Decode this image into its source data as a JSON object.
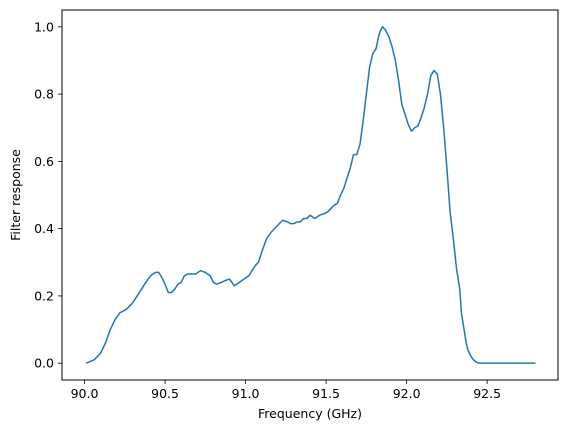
{
  "chart_data": {
    "type": "line",
    "title": "",
    "xlabel": "Frequency (GHz)",
    "ylabel": "Filter response",
    "xlim": [
      89.86,
      92.94
    ],
    "ylim": [
      -0.05,
      1.05
    ],
    "xticks": [
      90.0,
      90.5,
      91.0,
      91.5,
      92.0,
      92.5
    ],
    "xtick_labels": [
      "90.0",
      "90.5",
      "91.0",
      "91.5",
      "92.0",
      "92.5"
    ],
    "yticks": [
      0.0,
      0.2,
      0.4,
      0.6,
      0.8,
      1.0
    ],
    "ytick_labels": [
      "0.0",
      "0.2",
      "0.4",
      "0.6",
      "0.8",
      "1.0"
    ],
    "grid": false,
    "color": "#1f77b4",
    "series": [
      {
        "x": [
          90.01,
          90.06,
          90.1,
          90.13,
          90.16,
          90.19,
          90.22,
          90.24,
          90.26,
          90.3,
          90.34,
          90.38,
          90.41,
          90.44,
          90.46,
          90.48,
          90.5,
          90.52,
          90.54,
          90.56,
          90.58,
          90.6,
          90.62,
          90.64,
          90.66,
          90.69,
          90.72,
          90.75,
          90.78,
          90.8,
          90.82,
          90.85,
          90.87,
          90.9,
          90.93,
          90.96,
          90.99,
          91.02,
          91.04,
          91.06,
          91.08,
          91.1,
          91.13,
          91.16,
          91.2,
          91.23,
          91.26,
          91.28,
          91.3,
          91.32,
          91.34,
          91.36,
          91.38,
          91.4,
          91.43,
          91.46,
          91.49,
          91.51,
          91.53,
          91.55,
          91.57,
          91.59,
          91.61,
          91.63,
          91.65,
          91.67,
          91.69,
          91.71,
          91.73,
          91.75,
          91.77,
          91.79,
          91.81,
          91.83,
          91.85,
          91.87,
          91.89,
          91.91,
          91.93,
          91.95,
          91.97,
          91.99,
          92.01,
          92.03,
          92.05,
          92.07,
          92.09,
          92.11,
          92.13,
          92.15,
          92.17,
          92.19,
          92.21,
          92.23,
          92.25,
          92.27,
          92.29,
          92.31,
          92.33,
          92.34,
          92.36,
          92.37,
          92.38,
          92.39,
          92.4,
          92.41,
          92.42,
          92.43,
          92.44,
          92.45,
          92.46,
          92.47,
          92.48,
          92.5,
          92.52,
          92.54,
          92.56,
          92.58,
          92.6,
          92.63,
          92.66,
          92.7,
          92.75,
          92.8
        ],
        "y": [
          0.0,
          0.01,
          0.03,
          0.06,
          0.1,
          0.13,
          0.15,
          0.155,
          0.16,
          0.18,
          0.21,
          0.24,
          0.26,
          0.27,
          0.27,
          0.255,
          0.235,
          0.21,
          0.21,
          0.22,
          0.235,
          0.24,
          0.26,
          0.265,
          0.265,
          0.265,
          0.275,
          0.27,
          0.26,
          0.24,
          0.235,
          0.24,
          0.245,
          0.25,
          0.23,
          0.24,
          0.25,
          0.26,
          0.275,
          0.29,
          0.3,
          0.33,
          0.37,
          0.39,
          0.41,
          0.425,
          0.42,
          0.415,
          0.415,
          0.42,
          0.42,
          0.43,
          0.43,
          0.44,
          0.43,
          0.44,
          0.445,
          0.45,
          0.46,
          0.47,
          0.475,
          0.5,
          0.52,
          0.55,
          0.58,
          0.62,
          0.62,
          0.65,
          0.72,
          0.8,
          0.88,
          0.92,
          0.935,
          0.98,
          1.0,
          0.99,
          0.97,
          0.94,
          0.9,
          0.84,
          0.77,
          0.74,
          0.71,
          0.69,
          0.7,
          0.705,
          0.73,
          0.76,
          0.8,
          0.855,
          0.87,
          0.86,
          0.8,
          0.7,
          0.58,
          0.45,
          0.37,
          0.28,
          0.22,
          0.15,
          0.09,
          0.06,
          0.04,
          0.03,
          0.02,
          0.013,
          0.008,
          0.004,
          0.002,
          0.0,
          0.0,
          0.0,
          0.0,
          0.0,
          0.0,
          0.0,
          0.0,
          0.0,
          0.0,
          0.0,
          0.0,
          0.0,
          0.0,
          0.0
        ]
      }
    ]
  }
}
